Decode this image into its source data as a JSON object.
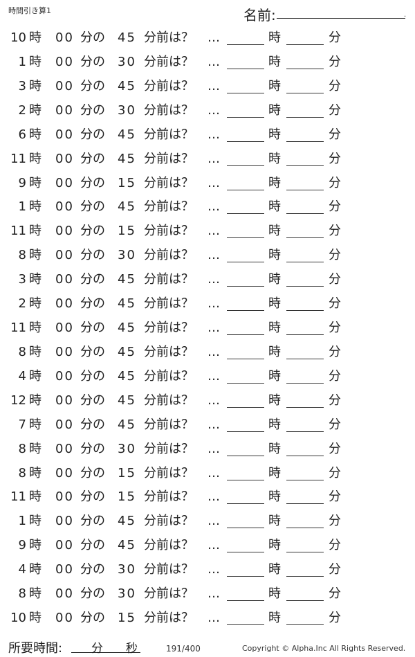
{
  "header": {
    "title": "時間引き算1",
    "name_label": "名前:",
    "name_end": "."
  },
  "labels": {
    "ji": "時",
    "zero": "00",
    "fun_no": "分の",
    "mae": "分前は？",
    "dots": "…",
    "ans_ji": "時",
    "ans_fun": "分"
  },
  "rows": [
    {
      "hour": "10",
      "minutes": "45"
    },
    {
      "hour": "1",
      "minutes": "30"
    },
    {
      "hour": "3",
      "minutes": "45"
    },
    {
      "hour": "2",
      "minutes": "30"
    },
    {
      "hour": "6",
      "minutes": "45"
    },
    {
      "hour": "11",
      "minutes": "45"
    },
    {
      "hour": "9",
      "minutes": "15"
    },
    {
      "hour": "1",
      "minutes": "45"
    },
    {
      "hour": "11",
      "minutes": "15"
    },
    {
      "hour": "8",
      "minutes": "30"
    },
    {
      "hour": "3",
      "minutes": "45"
    },
    {
      "hour": "2",
      "minutes": "45"
    },
    {
      "hour": "11",
      "minutes": "45"
    },
    {
      "hour": "8",
      "minutes": "45"
    },
    {
      "hour": "4",
      "minutes": "45"
    },
    {
      "hour": "12",
      "minutes": "45"
    },
    {
      "hour": "7",
      "minutes": "45"
    },
    {
      "hour": "8",
      "minutes": "30"
    },
    {
      "hour": "8",
      "minutes": "15"
    },
    {
      "hour": "11",
      "minutes": "15"
    },
    {
      "hour": "1",
      "minutes": "45"
    },
    {
      "hour": "9",
      "minutes": "45"
    },
    {
      "hour": "4",
      "minutes": "30"
    },
    {
      "hour": "8",
      "minutes": "30"
    },
    {
      "hour": "10",
      "minutes": "15"
    }
  ],
  "footer": {
    "time_label": "所要時間:",
    "min": "分",
    "sec": "秒",
    "page": "191/400",
    "copyright": "Copyright ©  Alpha.Inc All Rights Reserved."
  }
}
